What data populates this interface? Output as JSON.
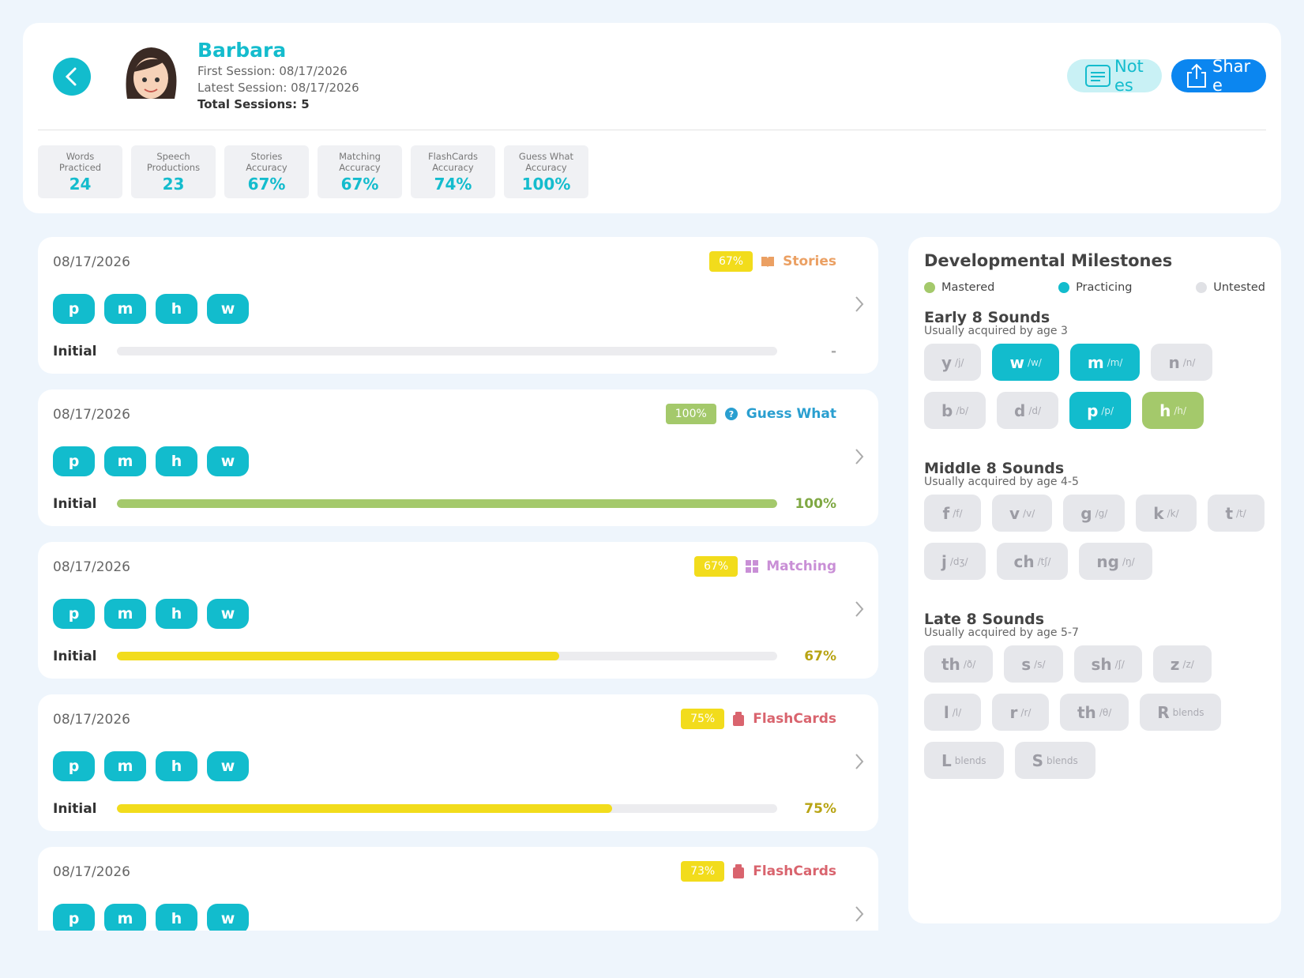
{
  "header": {
    "name": "Barbara",
    "first_session": "First Session: 08/17/2026",
    "latest_session": "Latest Session: 08/17/2026",
    "total_sessions": "Total Sessions: 5",
    "notes_button": "Notes",
    "share_button": "Share"
  },
  "stats": [
    {
      "label": "Words Practiced",
      "value": "24"
    },
    {
      "label": "Speech Productions",
      "value": "23"
    },
    {
      "label": "Stories Accuracy",
      "value": "67%"
    },
    {
      "label": "Matching Accuracy",
      "value": "67%"
    },
    {
      "label": "FlashCards Accuracy",
      "value": "74%"
    },
    {
      "label": "Guess What Accuracy",
      "value": "100%"
    }
  ],
  "sessions": [
    {
      "date": "08/17/2026",
      "score": "67%",
      "score_color": "yellow",
      "activity": "Stories",
      "activity_kind": "stories",
      "sounds": [
        "p",
        "m",
        "h",
        "w"
      ],
      "position": "Initial",
      "accuracy": null,
      "accuracy_label": "-"
    },
    {
      "date": "08/17/2026",
      "score": "100%",
      "score_color": "green",
      "activity": "Guess What",
      "activity_kind": "guess",
      "sounds": [
        "p",
        "m",
        "h",
        "w"
      ],
      "position": "Initial",
      "accuracy": 100,
      "accuracy_label": "100%"
    },
    {
      "date": "08/17/2026",
      "score": "67%",
      "score_color": "yellow",
      "activity": "Matching",
      "activity_kind": "matching",
      "sounds": [
        "p",
        "m",
        "h",
        "w"
      ],
      "position": "Initial",
      "accuracy": 67,
      "accuracy_label": "67%"
    },
    {
      "date": "08/17/2026",
      "score": "75%",
      "score_color": "yellow",
      "activity": "FlashCards",
      "activity_kind": "flashcards",
      "sounds": [
        "p",
        "m",
        "h",
        "w"
      ],
      "position": "Initial",
      "accuracy": 75,
      "accuracy_label": "75%"
    },
    {
      "date": "08/17/2026",
      "score": "73%",
      "score_color": "yellow",
      "activity": "FlashCards",
      "activity_kind": "flashcards",
      "sounds": [
        "p",
        "m",
        "h",
        "w"
      ]
    }
  ],
  "milestones": {
    "title": "Developmental Milestones",
    "legend": [
      {
        "label": "Mastered",
        "status": "mastered"
      },
      {
        "label": "Practicing",
        "status": "practicing"
      },
      {
        "label": "Untested",
        "status": "untested"
      }
    ],
    "groups": [
      {
        "title": "Early 8 Sounds",
        "subtitle": "Usually acquired by age 3",
        "sounds": [
          {
            "letter": "y",
            "ipa": "/j/",
            "status": "untested"
          },
          {
            "letter": "w",
            "ipa": "/w/",
            "status": "practicing"
          },
          {
            "letter": "m",
            "ipa": "/m/",
            "status": "practicing"
          },
          {
            "letter": "n",
            "ipa": "/n/",
            "status": "untested"
          },
          {
            "letter": "b",
            "ipa": "/b/",
            "status": "untested"
          },
          {
            "letter": "d",
            "ipa": "/d/",
            "status": "untested"
          },
          {
            "letter": "p",
            "ipa": "/p/",
            "status": "practicing"
          },
          {
            "letter": "h",
            "ipa": "/h/",
            "status": "mastered"
          }
        ]
      },
      {
        "title": "Middle 8 Sounds",
        "subtitle": "Usually acquired by age 4-5",
        "sounds": [
          {
            "letter": "f",
            "ipa": "/f/",
            "status": "untested"
          },
          {
            "letter": "v",
            "ipa": "/v/",
            "status": "untested"
          },
          {
            "letter": "g",
            "ipa": "/g/",
            "status": "untested"
          },
          {
            "letter": "k",
            "ipa": "/k/",
            "status": "untested"
          },
          {
            "letter": "t",
            "ipa": "/t/",
            "status": "untested"
          },
          {
            "letter": "j",
            "ipa": "/dʒ/",
            "status": "untested"
          },
          {
            "letter": "ch",
            "ipa": "/tʃ/",
            "status": "untested"
          },
          {
            "letter": "ng",
            "ipa": "/ŋ/",
            "status": "untested"
          }
        ]
      },
      {
        "title": "Late 8 Sounds",
        "subtitle": "Usually acquired by age 5-7",
        "sounds": [
          {
            "letter": "th",
            "ipa": "/ð/",
            "status": "untested"
          },
          {
            "letter": "s",
            "ipa": "/s/",
            "status": "untested"
          },
          {
            "letter": "sh",
            "ipa": "/ʃ/",
            "status": "untested"
          },
          {
            "letter": "z",
            "ipa": "/z/",
            "status": "untested"
          },
          {
            "letter": "l",
            "ipa": "/l/",
            "status": "untested"
          },
          {
            "letter": "r",
            "ipa": "/r/",
            "status": "untested"
          },
          {
            "letter": "th",
            "ipa": "/θ/",
            "status": "untested"
          },
          {
            "letter": "R",
            "ipa": "blends",
            "status": "untested"
          },
          {
            "letter": "L",
            "ipa": "blends",
            "status": "untested"
          },
          {
            "letter": "S",
            "ipa": "blends",
            "status": "untested"
          }
        ]
      }
    ]
  }
}
